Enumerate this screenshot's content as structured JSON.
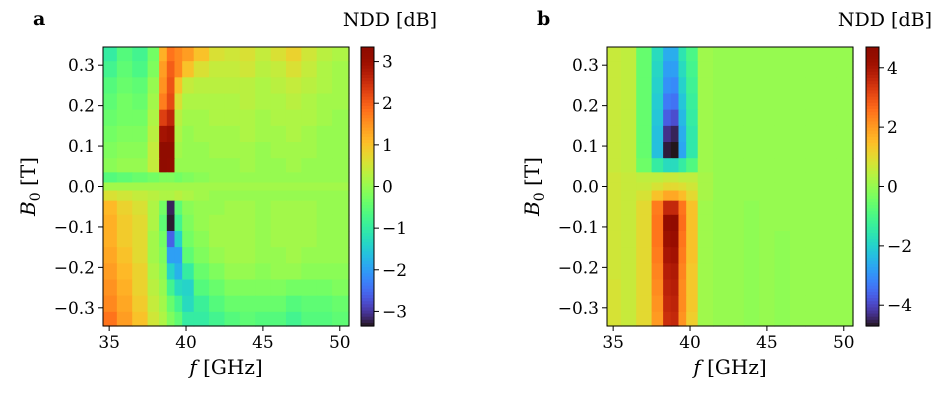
{
  "chart_data": [
    {
      "type": "heatmap",
      "panel_label": "a",
      "colorbar_title": "NDD [dB]",
      "xlabel_var": "f",
      "xlabel_unit": " [GHz]",
      "ylabel_var": "B",
      "ylabel_sub": "0",
      "ylabel_unit": " [T]",
      "xlim": [
        34.6,
        50.6
      ],
      "ylim": [
        -0.345,
        0.345
      ],
      "xticks": [
        35,
        40,
        45,
        50
      ],
      "xtick_labels": [
        "35",
        "40",
        "45",
        "50"
      ],
      "yticks": [
        0.3,
        0.2,
        0.1,
        0.0,
        -0.1,
        -0.2,
        -0.3
      ],
      "ytick_labels": [
        "0.3",
        "0.2",
        "0.1",
        "0.0",
        "−0.1",
        "−0.2",
        "−0.3"
      ],
      "clim": [
        -3.35,
        3.35
      ],
      "cticks": [
        3,
        2,
        1,
        0,
        -1,
        -2,
        -3
      ],
      "ctick_labels": [
        "3",
        "2",
        "1",
        "0",
        "−1",
        "−2",
        "−3"
      ],
      "colormap": "turbo",
      "description_cols": "frequency bins in GHz (cell centers)",
      "x": [
        35.0,
        36.0,
        37.0,
        38.0,
        38.5,
        39.0,
        39.5,
        40.0,
        41.0,
        42.0,
        43.0,
        44.0,
        45.0,
        46.0,
        47.0,
        48.0,
        49.0,
        50.0
      ],
      "y": [
        0.33,
        0.29,
        0.25,
        0.21,
        0.17,
        0.13,
        0.09,
        0.05,
        0.02,
        0.0,
        -0.02,
        -0.05,
        -0.09,
        -0.13,
        -0.17,
        -0.21,
        -0.25,
        -0.29,
        -0.33
      ],
      "z": [
        [
          -1.0,
          -0.6,
          -0.8,
          -0.3,
          1.2,
          1.8,
          1.6,
          1.4,
          1.0,
          0.6,
          0.5,
          0.6,
          0.4,
          0.6,
          0.8,
          0.5,
          0.3,
          0.2
        ],
        [
          -0.8,
          -0.5,
          -0.7,
          -0.2,
          1.4,
          2.0,
          1.6,
          1.0,
          0.6,
          0.4,
          0.4,
          0.5,
          0.3,
          0.4,
          0.6,
          0.4,
          0.2,
          0.1
        ],
        [
          -0.6,
          -0.4,
          -0.5,
          0.0,
          1.5,
          2.1,
          1.0,
          0.4,
          0.3,
          0.3,
          0.3,
          0.3,
          0.2,
          0.3,
          0.4,
          0.3,
          0.2,
          0.1
        ],
        [
          -0.5,
          -0.3,
          -0.4,
          0.1,
          1.7,
          2.2,
          0.6,
          0.2,
          0.2,
          0.2,
          0.2,
          0.3,
          0.2,
          0.2,
          0.3,
          0.2,
          0.1,
          0.1
        ],
        [
          -0.4,
          -0.3,
          -0.3,
          0.2,
          2.3,
          2.6,
          0.3,
          0.1,
          0.1,
          0.2,
          0.2,
          0.2,
          0.1,
          0.2,
          0.2,
          0.2,
          0.1,
          0.0
        ],
        [
          -0.3,
          -0.2,
          -0.2,
          0.3,
          2.9,
          3.0,
          0.2,
          0.0,
          0.1,
          0.1,
          0.1,
          0.2,
          0.1,
          0.1,
          0.2,
          0.1,
          0.0,
          0.0
        ],
        [
          -0.2,
          -0.1,
          -0.1,
          0.4,
          3.3,
          3.3,
          0.1,
          0.0,
          0.0,
          0.1,
          0.1,
          0.1,
          0.0,
          0.1,
          0.1,
          0.1,
          0.0,
          0.0
        ],
        [
          -0.1,
          0.0,
          0.0,
          0.4,
          3.3,
          3.2,
          0.0,
          0.0,
          0.0,
          0.0,
          0.0,
          0.1,
          0.0,
          0.0,
          0.1,
          0.0,
          0.0,
          0.0
        ],
        [
          -0.6,
          -0.5,
          -0.4,
          -0.3,
          -0.2,
          -0.2,
          -0.3,
          -0.2,
          -0.1,
          0.0,
          0.0,
          0.0,
          0.0,
          0.0,
          0.0,
          0.0,
          0.0,
          0.0
        ],
        [
          0.1,
          0.1,
          0.1,
          0.1,
          0.1,
          0.1,
          0.1,
          0.1,
          0.1,
          0.1,
          0.1,
          0.1,
          0.1,
          0.1,
          0.1,
          0.1,
          0.1,
          0.1
        ],
        [
          0.6,
          0.5,
          0.4,
          0.3,
          0.2,
          0.2,
          0.3,
          0.2,
          0.1,
          0.0,
          0.0,
          0.0,
          0.0,
          0.0,
          0.0,
          0.0,
          0.0,
          0.0
        ],
        [
          1.1,
          0.8,
          0.6,
          0.2,
          -0.3,
          -3.2,
          -0.5,
          -0.1,
          0.0,
          0.0,
          0.1,
          0.1,
          0.0,
          0.1,
          0.1,
          0.1,
          0.0,
          0.0
        ],
        [
          1.2,
          0.9,
          0.7,
          0.2,
          -0.5,
          -3.3,
          -0.8,
          -0.2,
          0.0,
          0.1,
          0.1,
          0.1,
          0.0,
          0.1,
          0.1,
          0.1,
          0.0,
          0.0
        ],
        [
          1.2,
          0.9,
          0.7,
          0.1,
          -0.3,
          -2.6,
          -1.4,
          -0.3,
          -0.1,
          0.1,
          0.1,
          0.1,
          0.0,
          0.1,
          0.1,
          0.1,
          0.0,
          0.0
        ],
        [
          1.3,
          1.0,
          0.7,
          0.1,
          -0.2,
          -2.0,
          -2.0,
          -0.5,
          -0.2,
          0.0,
          0.1,
          0.1,
          0.0,
          0.0,
          0.1,
          0.0,
          0.0,
          0.0
        ],
        [
          1.4,
          1.1,
          0.8,
          0.2,
          -0.1,
          -1.4,
          -1.8,
          -1.0,
          -0.4,
          -0.2,
          0.0,
          0.0,
          -0.1,
          0.0,
          0.0,
          -0.1,
          -0.1,
          -0.1
        ],
        [
          1.5,
          1.2,
          0.8,
          0.3,
          0.0,
          -0.8,
          -1.3,
          -1.4,
          -0.6,
          -0.4,
          -0.2,
          -0.2,
          -0.2,
          -0.2,
          -0.3,
          -0.3,
          -0.3,
          -0.2
        ],
        [
          1.6,
          1.3,
          0.9,
          0.4,
          0.1,
          -0.4,
          -0.8,
          -1.3,
          -0.9,
          -0.6,
          -0.4,
          -0.4,
          -0.4,
          -0.4,
          -0.6,
          -0.5,
          -0.5,
          -0.4
        ],
        [
          1.8,
          1.4,
          1.0,
          0.5,
          0.2,
          -0.2,
          -0.5,
          -1.0,
          -1.0,
          -0.8,
          -0.6,
          -0.5,
          -0.6,
          -0.6,
          -0.8,
          -0.6,
          -0.6,
          -0.5
        ]
      ]
    },
    {
      "type": "heatmap",
      "panel_label": "b",
      "colorbar_title": "NDD [dB]",
      "xlabel_var": "f",
      "xlabel_unit": " [GHz]",
      "ylabel_var": "B",
      "ylabel_sub": "0",
      "ylabel_unit": " [T]",
      "xlim": [
        34.6,
        50.6
      ],
      "ylim": [
        -0.345,
        0.345
      ],
      "xticks": [
        35,
        40,
        45,
        50
      ],
      "xtick_labels": [
        "35",
        "40",
        "45",
        "50"
      ],
      "yticks": [
        0.3,
        0.2,
        0.1,
        0.0,
        -0.1,
        -0.2,
        -0.3
      ],
      "ytick_labels": [
        "0.3",
        "0.2",
        "0.1",
        "0.0",
        "−0.1",
        "−0.2",
        "−0.3"
      ],
      "clim": [
        -4.7,
        4.7
      ],
      "cticks": [
        4,
        2,
        0,
        -2,
        -4
      ],
      "ctick_labels": [
        "4",
        "2",
        "0",
        "−2",
        "−4"
      ],
      "colormap": "turbo",
      "x": [
        35.0,
        36.0,
        37.0,
        38.0,
        38.5,
        39.0,
        39.5,
        40.0,
        41.0,
        42.0,
        43.0,
        44.0,
        45.0,
        46.0,
        47.0,
        48.0,
        49.0,
        50.0
      ],
      "y": [
        0.33,
        0.29,
        0.25,
        0.21,
        0.17,
        0.13,
        0.09,
        0.05,
        0.02,
        0.0,
        -0.02,
        -0.05,
        -0.09,
        -0.13,
        -0.17,
        -0.21,
        -0.25,
        -0.29,
        -0.33
      ],
      "z": [
        [
          0.6,
          0.5,
          -0.6,
          -1.8,
          -2.6,
          -2.6,
          -1.6,
          -1.0,
          0.1,
          0.0,
          0.0,
          0.0,
          0.0,
          0.0,
          0.0,
          0.0,
          0.0,
          0.0
        ],
        [
          0.6,
          0.5,
          -0.6,
          -1.9,
          -2.8,
          -2.8,
          -1.8,
          -1.1,
          0.1,
          0.0,
          0.0,
          0.0,
          0.0,
          0.0,
          0.0,
          0.0,
          0.0,
          0.0
        ],
        [
          0.6,
          0.5,
          -0.6,
          -2.0,
          -3.0,
          -3.1,
          -2.0,
          -1.2,
          0.1,
          0.0,
          0.0,
          0.0,
          0.0,
          0.0,
          0.0,
          0.0,
          0.0,
          0.0
        ],
        [
          0.6,
          0.5,
          -0.6,
          -2.1,
          -3.3,
          -3.4,
          -2.2,
          -1.3,
          0.1,
          0.0,
          0.0,
          0.0,
          0.0,
          0.0,
          0.0,
          0.0,
          0.0,
          0.0
        ],
        [
          0.6,
          0.5,
          -0.6,
          -2.2,
          -3.7,
          -3.9,
          -2.4,
          -1.4,
          0.1,
          0.0,
          0.0,
          0.0,
          0.0,
          0.0,
          0.0,
          0.0,
          0.0,
          0.0
        ],
        [
          0.6,
          0.5,
          -0.6,
          -2.3,
          -4.3,
          -4.5,
          -2.6,
          -1.5,
          0.1,
          0.0,
          0.0,
          0.0,
          0.0,
          0.0,
          0.0,
          0.0,
          0.0,
          0.0
        ],
        [
          0.6,
          0.5,
          -0.6,
          -2.3,
          -4.6,
          -4.7,
          -2.7,
          -1.5,
          0.1,
          0.0,
          0.0,
          0.0,
          0.0,
          0.0,
          0.0,
          0.0,
          0.0,
          0.0
        ],
        [
          0.6,
          0.5,
          -0.5,
          -1.4,
          -1.8,
          -1.8,
          -1.4,
          -0.9,
          0.1,
          0.0,
          0.0,
          0.0,
          0.0,
          0.0,
          0.0,
          0.0,
          0.0,
          0.0
        ],
        [
          0.7,
          0.6,
          0.5,
          0.5,
          0.6,
          0.6,
          0.5,
          0.5,
          0.2,
          0.0,
          0.0,
          0.0,
          0.0,
          0.0,
          0.0,
          0.0,
          0.0,
          0.0
        ],
        [
          0.7,
          0.6,
          0.6,
          0.8,
          1.0,
          1.0,
          0.9,
          0.7,
          0.2,
          0.0,
          0.0,
          0.0,
          0.0,
          0.0,
          0.0,
          0.0,
          0.0,
          0.0
        ],
        [
          0.7,
          0.6,
          0.8,
          1.4,
          1.8,
          1.8,
          1.5,
          1.0,
          0.2,
          0.0,
          0.0,
          0.0,
          0.0,
          0.0,
          0.0,
          0.0,
          0.0,
          0.0
        ],
        [
          0.7,
          0.6,
          1.0,
          2.4,
          3.6,
          3.6,
          2.5,
          1.4,
          0.1,
          0.0,
          0.0,
          -0.1,
          0.0,
          0.0,
          0.0,
          0.0,
          0.0,
          0.0
        ],
        [
          0.7,
          0.6,
          1.0,
          2.5,
          4.4,
          4.5,
          2.6,
          1.4,
          0.1,
          0.0,
          0.0,
          -0.1,
          0.0,
          0.0,
          0.0,
          0.0,
          0.0,
          0.0
        ],
        [
          0.7,
          0.6,
          1.0,
          2.5,
          4.2,
          4.3,
          2.5,
          1.4,
          0.1,
          0.0,
          0.0,
          -0.1,
          0.0,
          -0.1,
          0.0,
          0.0,
          0.0,
          0.0
        ],
        [
          0.7,
          0.6,
          1.0,
          2.4,
          4.0,
          4.1,
          2.4,
          1.4,
          0.1,
          0.0,
          0.0,
          -0.1,
          0.0,
          -0.1,
          0.0,
          0.0,
          0.0,
          0.0
        ],
        [
          0.7,
          0.6,
          1.0,
          2.3,
          3.8,
          3.9,
          2.3,
          1.3,
          0.1,
          0.0,
          0.0,
          -0.1,
          0.0,
          -0.1,
          0.0,
          0.0,
          0.0,
          0.0
        ],
        [
          0.8,
          0.6,
          1.0,
          2.2,
          3.7,
          3.8,
          2.2,
          1.3,
          0.1,
          0.0,
          0.0,
          -0.1,
          0.0,
          -0.1,
          0.0,
          0.0,
          0.0,
          0.0
        ],
        [
          0.8,
          0.6,
          1.0,
          2.1,
          3.6,
          3.7,
          2.2,
          1.3,
          0.1,
          0.0,
          0.0,
          -0.1,
          0.0,
          -0.1,
          0.0,
          0.0,
          0.0,
          0.0
        ],
        [
          0.8,
          0.6,
          1.0,
          2.0,
          3.5,
          3.6,
          2.1,
          1.2,
          0.1,
          0.0,
          0.0,
          -0.1,
          0.0,
          -0.1,
          0.0,
          0.0,
          0.0,
          0.0
        ]
      ]
    }
  ]
}
